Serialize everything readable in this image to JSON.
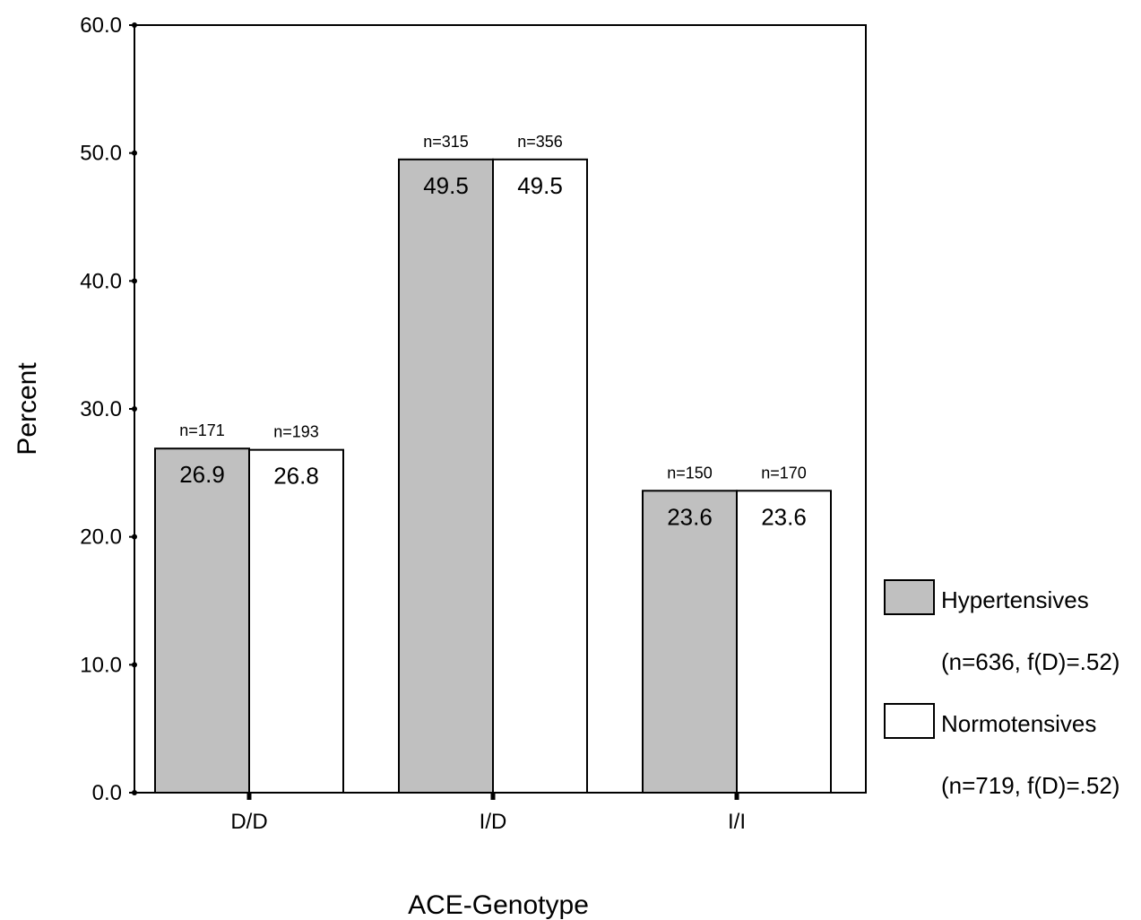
{
  "chart_data": {
    "type": "bar",
    "title": "",
    "xlabel": "ACE-Genotype",
    "ylabel": "Percent",
    "ylim": [
      0,
      60
    ],
    "yticks": [
      "0.0",
      "10.0",
      "20.0",
      "30.0",
      "40.0",
      "50.0",
      "60.0"
    ],
    "categories": [
      "D/D",
      "I/D",
      "I/I"
    ],
    "grid": false,
    "legend_position": "right",
    "series": [
      {
        "name": "Hypertensives",
        "legend_note": "(n=636, f(D)=.52)",
        "color": "#c0c0c0",
        "values": [
          26.9,
          49.5,
          23.6
        ],
        "value_labels": [
          "26.9",
          "49.5",
          "23.6"
        ],
        "n_labels": [
          "n=171",
          "n=315",
          "n=150"
        ]
      },
      {
        "name": "Normotensives",
        "legend_note": "(n=719, f(D)=.52)",
        "color": "#ffffff",
        "values": [
          26.8,
          49.5,
          23.6
        ],
        "value_labels": [
          "26.8",
          "49.5",
          "23.6"
        ],
        "n_labels": [
          "n=193",
          "n=356",
          "n=170"
        ]
      }
    ]
  }
}
